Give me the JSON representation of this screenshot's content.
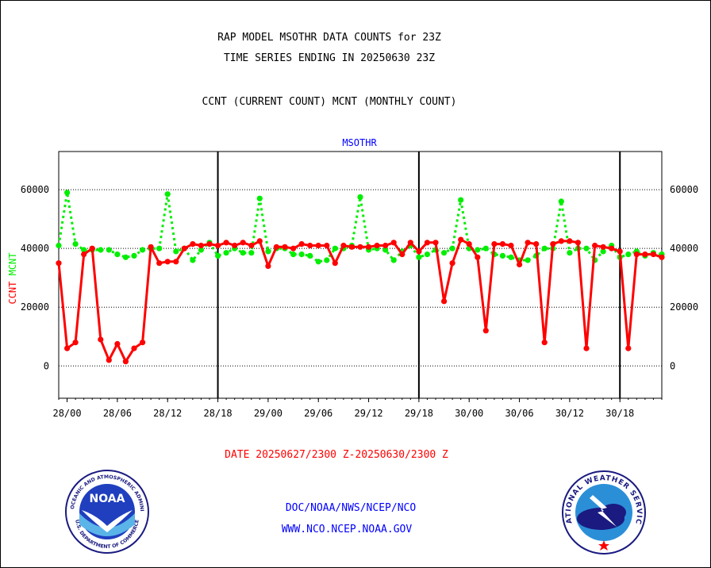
{
  "header": {
    "title_line1": "RAP MODEL MSOTHR DATA COUNTS for 23Z",
    "title_line2": "TIME SERIES ENDING IN 20250630 23Z",
    "subtitle": "CCNT (CURRENT COUNT) MCNT (MONTHLY COUNT)"
  },
  "footer": {
    "date_range": "DATE 20250627/2300 Z-20250630/2300 Z",
    "link1": "DOC/NOAA/NWS/NCEP/NCO",
    "link2": "WWW.NCO.NCEP.NOAA.GOV"
  },
  "logos": {
    "noaa_text": "NOAA",
    "noaa_ring_top": "NATIONAL OCEANIC AND ATMOSPHERIC ADMINISTRATION",
    "noaa_ring_bottom": "U.S. DEPARTMENT OF COMMERCE",
    "nws_ring": "NATIONAL WEATHER SERVICE"
  },
  "colors": {
    "ccnt": "#ff0000",
    "mcnt": "#00ee00",
    "axis": "#000000",
    "label_blue": "#0000ff"
  },
  "chart_data": {
    "type": "line",
    "title": "MSOTHR",
    "ylabel_ccnt": "CCNT",
    "ylabel_mcnt": "MCNT",
    "ylim": [
      -11000,
      73000
    ],
    "yticks": [
      0,
      20000,
      40000,
      60000
    ],
    "grid": "dotted horizontal at y ticks",
    "x_ticks": [
      {
        "x": 0,
        "label": "28/00"
      },
      {
        "x": 6,
        "label": "28/06"
      },
      {
        "x": 12,
        "label": "28/12"
      },
      {
        "x": 18,
        "label": "28/18"
      },
      {
        "x": 24,
        "label": "29/00"
      },
      {
        "x": 30,
        "label": "29/06"
      },
      {
        "x": 36,
        "label": "29/12"
      },
      {
        "x": 42,
        "label": "29/18"
      },
      {
        "x": 48,
        "label": "30/00"
      },
      {
        "x": 54,
        "label": "30/06"
      },
      {
        "x": 60,
        "label": "30/12"
      },
      {
        "x": 66,
        "label": "30/18"
      }
    ],
    "day_boundaries": [
      18,
      42,
      66
    ],
    "xlim": [
      -1,
      71
    ],
    "series": [
      {
        "name": "CCNT",
        "style": "solid",
        "values": [
          35000,
          6000,
          8000,
          38000,
          40000,
          9000,
          2000,
          7500,
          1500,
          6000,
          8000,
          40500,
          35000,
          35500,
          35500,
          40000,
          41500,
          41000,
          41500,
          41000,
          42000,
          41000,
          42000,
          41000,
          42500,
          34000,
          40500,
          40500,
          40000,
          41500,
          41000,
          41000,
          41000,
          35000,
          41000,
          40500,
          40500,
          40500,
          41000,
          41000,
          42000,
          38000,
          42000,
          39000,
          42000,
          42000,
          22000,
          35000,
          43000,
          41500,
          37000,
          12000,
          41500,
          41500,
          41000,
          34500,
          42000,
          41500,
          8000,
          41500,
          42500,
          42500,
          42000,
          6000,
          41000,
          40500,
          40000,
          39000,
          6000,
          38000,
          38000,
          38000,
          37000
        ],
        "x_start": -1
      },
      {
        "name": "MCNT",
        "style": "dotted",
        "values": [
          41000,
          59000,
          41500,
          39500,
          39500,
          39500,
          39500,
          38000,
          37000,
          37500,
          39500,
          40000,
          40000,
          58500,
          39000,
          40000,
          36000,
          39500,
          42000,
          37500,
          38500,
          40000,
          38500,
          38500,
          57000,
          39000,
          40000,
          40000,
          38000,
          38000,
          37500,
          35500,
          36000,
          40000,
          40000,
          41000,
          57500,
          39500,
          40000,
          39500,
          36000,
          39000,
          41000,
          37000,
          38000,
          39500,
          38500,
          40000,
          56500,
          40000,
          39500,
          40000,
          38000,
          37500,
          37000,
          36000,
          36000,
          37500,
          40000,
          40000,
          56000,
          38500,
          40000,
          40000,
          36000,
          39000,
          41000,
          37000,
          38000,
          39000,
          37500,
          38500,
          38000
        ],
        "x_start": -1
      }
    ]
  }
}
